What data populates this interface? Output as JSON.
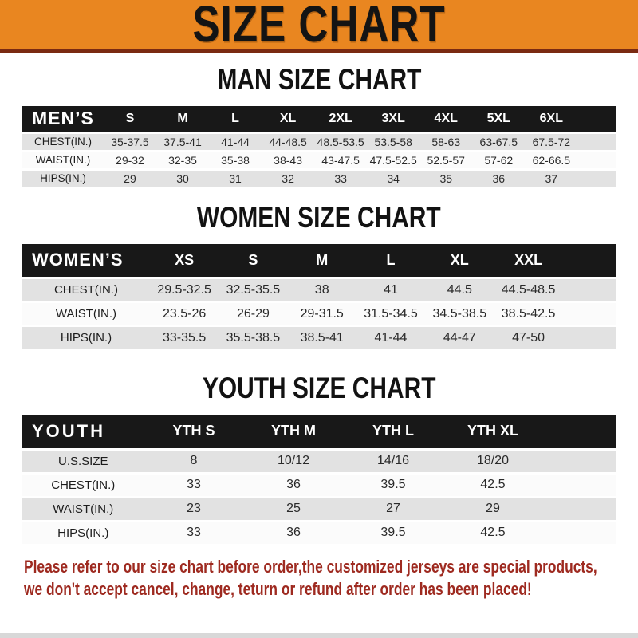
{
  "banner": {
    "title": "SIZE CHART"
  },
  "colors": {
    "banner_bg": "#E98620",
    "banner_border": "#7A2A12",
    "header_bar_bg": "#181818",
    "row_shade": "#E2E2E2",
    "row_plain": "#FBFBFB",
    "note_text": "#9E2A20"
  },
  "sections": [
    {
      "id": "men",
      "title": "MAN SIZE CHART",
      "header_label": "MEN’S",
      "columns": [
        "S",
        "M",
        "L",
        "XL",
        "2XL",
        "3XL",
        "4XL",
        "5XL",
        "6XL"
      ],
      "rows": [
        {
          "label": "CHEST(IN.)",
          "values": [
            "35-37.5",
            "37.5-41",
            "41-44",
            "44-48.5",
            "48.5-53.5",
            "53.5-58",
            "58-63",
            "63-67.5",
            "67.5-72"
          ]
        },
        {
          "label": "WAIST(IN.)",
          "values": [
            "29-32",
            "32-35",
            "35-38",
            "38-43",
            "43-47.5",
            "47.5-52.5",
            "52.5-57",
            "57-62",
            "62-66.5"
          ]
        },
        {
          "label": "HIPS(IN.)",
          "values": [
            "29",
            "30",
            "31",
            "32",
            "33",
            "34",
            "35",
            "36",
            "37"
          ]
        }
      ]
    },
    {
      "id": "women",
      "title": "WOMEN SIZE CHART",
      "header_label": "WOMEN’S",
      "columns": [
        "XS",
        "S",
        "M",
        "L",
        "XL",
        "XXL"
      ],
      "rows": [
        {
          "label": "CHEST(IN.)",
          "values": [
            "29.5-32.5",
            "32.5-35.5",
            "38",
            "41",
            "44.5",
            "44.5-48.5"
          ]
        },
        {
          "label": "WAIST(IN.)",
          "values": [
            "23.5-26",
            "26-29",
            "29-31.5",
            "31.5-34.5",
            "34.5-38.5",
            "38.5-42.5"
          ]
        },
        {
          "label": "HIPS(IN.)",
          "values": [
            "33-35.5",
            "35.5-38.5",
            "38.5-41",
            "41-44",
            "44-47",
            "47-50"
          ]
        }
      ]
    },
    {
      "id": "youth",
      "title": "YOUTH SIZE CHART",
      "header_label": "YOUTH",
      "columns": [
        "YTH S",
        "YTH M",
        "YTH L",
        "YTH XL"
      ],
      "rows": [
        {
          "label": "U.S.SIZE",
          "values": [
            "8",
            "10/12",
            "14/16",
            "18/20"
          ]
        },
        {
          "label": "CHEST(IN.)",
          "values": [
            "33",
            "36",
            "39.5",
            "42.5"
          ]
        },
        {
          "label": "WAIST(IN.)",
          "values": [
            "23",
            "25",
            "27",
            "29"
          ]
        },
        {
          "label": "HIPS(IN.)",
          "values": [
            "33",
            "36",
            "39.5",
            "42.5"
          ]
        }
      ]
    }
  ],
  "footer": {
    "line1": "Please refer to our size chart before order,the customized jerseys are special products,",
    "line2": "we don't accept cancel, change, teturn or refund after order has been placed!"
  }
}
